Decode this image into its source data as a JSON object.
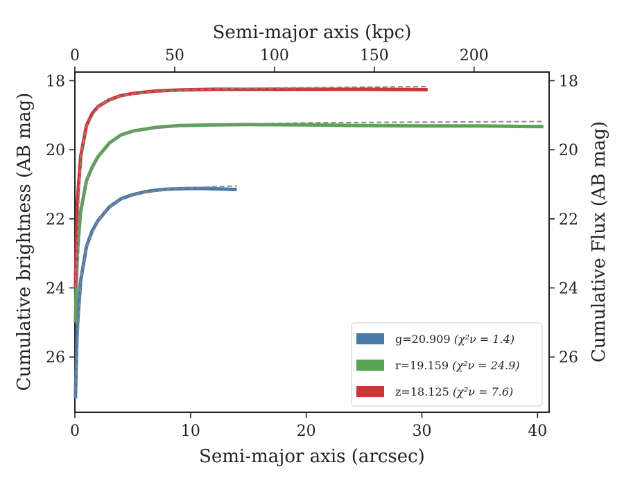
{
  "chart_data": {
    "type": "line",
    "xlabel": "Semi-major axis (arcsec)",
    "ylabel": "Cumulative brightness (AB mag)",
    "top_xlabel": "Semi-major axis (kpc)",
    "right_ylabel": "Cumulative Flux (AB mag)",
    "xlim": [
      0,
      41
    ],
    "ylim": [
      27.6,
      17.75
    ],
    "y_inverted": true,
    "top_xlim": [
      0,
      237.6
    ],
    "x_ticks": [
      "0",
      "10",
      "20",
      "30",
      "40"
    ],
    "y_ticks": [
      "18",
      "20",
      "22",
      "24",
      "26"
    ],
    "top_x_ticks": [
      "0",
      "50",
      "100",
      "150",
      "200"
    ],
    "right_y_ticks": [
      "18",
      "20",
      "22",
      "24",
      "26"
    ],
    "grid": false,
    "legend_position": "lower-right",
    "colors": {
      "g": "#4a7aaa",
      "r": "#5aa454",
      "z": "#d03535",
      "model": "#888888"
    },
    "series": [
      {
        "name": "g=20.909",
        "chi_label": "(χ²ν = 1.4)",
        "band": "g",
        "x": [
          0.05,
          0.2,
          0.5,
          1,
          1.5,
          2,
          3,
          4,
          5,
          6,
          7,
          8,
          9,
          10,
          11,
          12,
          13,
          14
        ],
        "y": [
          27.2,
          25.2,
          23.8,
          22.8,
          22.35,
          22.05,
          21.65,
          21.42,
          21.3,
          21.22,
          21.17,
          21.14,
          21.13,
          21.12,
          21.12,
          21.13,
          21.14,
          21.15
        ],
        "model_x": [
          0.05,
          0.5,
          1,
          2,
          3,
          4,
          5,
          6,
          8,
          10,
          12,
          14
        ],
        "model_y": [
          27.2,
          23.8,
          22.8,
          22.05,
          21.65,
          21.43,
          21.31,
          21.23,
          21.14,
          21.1,
          21.07,
          21.05
        ]
      },
      {
        "name": "r=19.159",
        "chi_label": "(χ²ν = 24.9)",
        "band": "r",
        "x": [
          0.05,
          0.2,
          0.5,
          1,
          1.5,
          2,
          3,
          4,
          5,
          7,
          9,
          12,
          15,
          20,
          25,
          30,
          35,
          40.5
        ],
        "y": [
          25.0,
          23.0,
          21.8,
          20.9,
          20.5,
          20.2,
          19.8,
          19.57,
          19.46,
          19.35,
          19.3,
          19.28,
          19.27,
          19.28,
          19.3,
          19.31,
          19.31,
          19.33
        ],
        "model_x": [
          0.05,
          0.5,
          1,
          2,
          3,
          4,
          5,
          7,
          10,
          15,
          20,
          30,
          40.5
        ],
        "model_y": [
          25.0,
          21.8,
          20.9,
          20.2,
          19.8,
          19.58,
          19.47,
          19.37,
          19.3,
          19.25,
          19.22,
          19.2,
          19.18
        ]
      },
      {
        "name": "z=18.125",
        "chi_label": "(χ²ν = 7.6)",
        "band": "z",
        "x": [
          0.05,
          0.2,
          0.5,
          1,
          1.5,
          2,
          3,
          4,
          5,
          7,
          9,
          12,
          15,
          20,
          25,
          30.5
        ],
        "y": [
          24.0,
          21.6,
          20.2,
          19.3,
          18.95,
          18.75,
          18.55,
          18.43,
          18.37,
          18.3,
          18.27,
          18.25,
          18.25,
          18.25,
          18.25,
          18.26
        ],
        "model_x": [
          0.05,
          0.5,
          1,
          2,
          3,
          4,
          5,
          7,
          10,
          15,
          20,
          30.5
        ],
        "model_y": [
          24.0,
          20.2,
          19.3,
          18.75,
          18.55,
          18.44,
          18.38,
          18.31,
          18.26,
          18.22,
          18.2,
          18.17
        ]
      }
    ]
  }
}
